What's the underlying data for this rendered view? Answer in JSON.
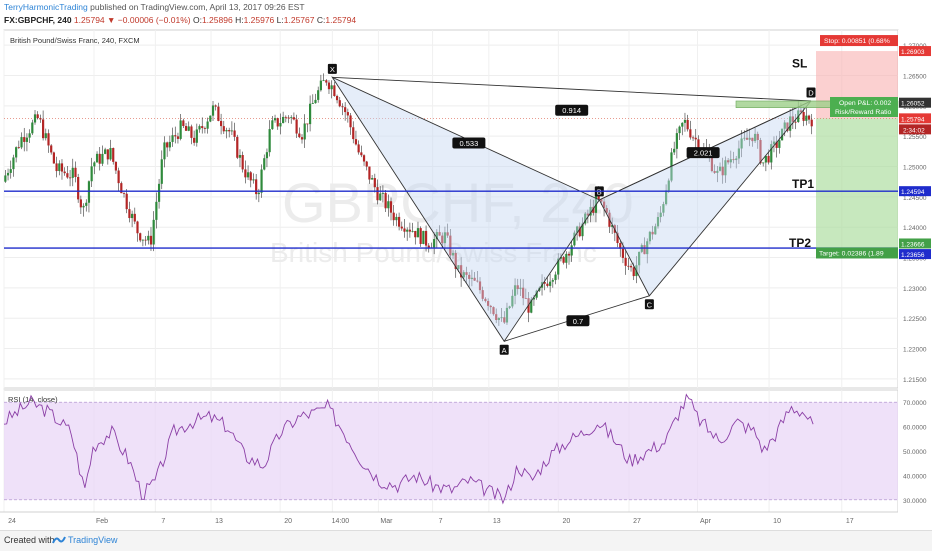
{
  "header": {
    "author": "TerryHarmonicTrading",
    "published": "published on TradingView.com, April 13, 2017 09:26 EST",
    "symbol": "FX:GBPCHF, 240",
    "last": "1.25794",
    "change": "▼ −0.00006 (−0.01%)",
    "open_label": "O:",
    "open": "1.25896",
    "high_label": "H:",
    "high": "1.25976",
    "low_label": "L:",
    "low": "1.25767",
    "close_label": "C:",
    "close": "1.25794"
  },
  "footer": {
    "created": "Created with",
    "brand": "TradingView"
  },
  "chart_data": {
    "type": "candlestick",
    "title": "British Pound/Swiss Franc, 240, FXCM",
    "watermark_symbol": "GBPCHF, 240",
    "watermark_name": "British Pound/Swiss Franc",
    "ylim": [
      1.2135,
      1.2725
    ],
    "y_ticks": [
      1.27,
      1.265,
      1.26,
      1.255,
      1.25,
      1.245,
      1.24,
      1.235,
      1.23,
      1.225,
      1.22,
      1.215
    ],
    "y_tick_labels": [
      "1.27000",
      "1.26500",
      "1.26000",
      "1.25500",
      "1.25000",
      "1.24500",
      "1.24000",
      "1.23500",
      "1.23000",
      "1.22500",
      "1.22000",
      "1.21500"
    ],
    "x_ticks": [
      {
        "label": "24",
        "pos": 0.0
      },
      {
        "label": "Feb",
        "pos": 0.1007
      },
      {
        "label": "7",
        "pos": 0.1693
      },
      {
        "label": "13",
        "pos": 0.2316
      },
      {
        "label": "20",
        "pos": 0.3089
      },
      {
        "label": "14:00",
        "pos": 0.3673
      },
      {
        "label": "Mar",
        "pos": 0.4188
      },
      {
        "label": "7",
        "pos": 0.4794
      },
      {
        "label": "13",
        "pos": 0.5423
      },
      {
        "label": "20",
        "pos": 0.6201
      },
      {
        "label": "27",
        "pos": 0.6991
      },
      {
        "label": "Apr",
        "pos": 0.7757
      },
      {
        "label": "10",
        "pos": 0.8558
      },
      {
        "label": "17",
        "pos": 0.9371
      },
      {
        "label": "24",
        "pos": 1.0126
      }
    ],
    "close_path": [
      [
        0.0,
        1.2475
      ],
      [
        0.02,
        1.2545
      ],
      [
        0.04,
        1.258
      ],
      [
        0.06,
        1.2495
      ],
      [
        0.08,
        1.2485
      ],
      [
        0.09,
        1.2425
      ],
      [
        0.1,
        1.2505
      ],
      [
        0.12,
        1.2525
      ],
      [
        0.135,
        1.2455
      ],
      [
        0.15,
        1.2395
      ],
      [
        0.165,
        1.2372
      ],
      [
        0.18,
        1.2525
      ],
      [
        0.2,
        1.2565
      ],
      [
        0.215,
        1.2545
      ],
      [
        0.235,
        1.2595
      ],
      [
        0.255,
        1.2555
      ],
      [
        0.27,
        1.2495
      ],
      [
        0.285,
        1.2455
      ],
      [
        0.3,
        1.2565
      ],
      [
        0.32,
        1.2585
      ],
      [
        0.335,
        1.2555
      ],
      [
        0.35,
        1.2615
      ],
      [
        0.362,
        1.2645
      ],
      [
        0.372,
        1.2625
      ],
      [
        0.385,
        1.2585
      ],
      [
        0.4,
        1.2515
      ],
      [
        0.42,
        1.2455
      ],
      [
        0.44,
        1.2415
      ],
      [
        0.46,
        1.2395
      ],
      [
        0.475,
        1.2375
      ],
      [
        0.495,
        1.2385
      ],
      [
        0.51,
        1.2325
      ],
      [
        0.53,
        1.2305
      ],
      [
        0.545,
        1.2275
      ],
      [
        0.56,
        1.2238
      ],
      [
        0.575,
        1.2305
      ],
      [
        0.59,
        1.2265
      ],
      [
        0.605,
        1.2305
      ],
      [
        0.625,
        1.2345
      ],
      [
        0.645,
        1.2395
      ],
      [
        0.665,
        1.2445
      ],
      [
        0.675,
        1.2425
      ],
      [
        0.69,
        1.2365
      ],
      [
        0.705,
        1.2325
      ],
      [
        0.72,
        1.2375
      ],
      [
        0.735,
        1.2415
      ],
      [
        0.75,
        1.2525
      ],
      [
        0.762,
        1.2575
      ],
      [
        0.775,
        1.2545
      ],
      [
        0.79,
        1.2515
      ],
      [
        0.8,
        1.2485
      ],
      [
        0.82,
        1.2525
      ],
      [
        0.84,
        1.2555
      ],
      [
        0.85,
        1.2505
      ],
      [
        0.865,
        1.2535
      ],
      [
        0.88,
        1.2575
      ],
      [
        0.895,
        1.2585
      ],
      [
        0.905,
        1.2579
      ]
    ],
    "pattern": {
      "points": [
        {
          "label": "X",
          "x": 0.3673,
          "y": 1.2647
        },
        {
          "label": "A",
          "x": 0.5595,
          "y": 1.2212
        },
        {
          "label": "B",
          "x": 0.6659,
          "y": 1.2445
        },
        {
          "label": "C",
          "x": 0.7219,
          "y": 1.2287
        },
        {
          "label": "D",
          "x": 0.9027,
          "y": 1.2608
        }
      ],
      "ratios": [
        {
          "label": "0.914",
          "x": 0.635,
          "y": 1.2592
        },
        {
          "label": "0.533",
          "x": 0.52,
          "y": 1.2538
        },
        {
          "label": "2.021",
          "x": 0.782,
          "y": 1.2522
        },
        {
          "label": "0.7",
          "x": 0.642,
          "y": 1.2245
        }
      ]
    },
    "levels": [
      {
        "name": "TP1",
        "price": 1.24594,
        "label": "1.24594"
      },
      {
        "name": "TP2",
        "price": 1.23656,
        "label": "1.23656"
      },
      {
        "name": "Target",
        "price": 1.23666,
        "label": "1.23666"
      },
      {
        "name": "Stop",
        "price": 1.26903,
        "label": "1.26903"
      },
      {
        "name": "Current",
        "price": 1.25794,
        "label": "1.25794"
      },
      {
        "name": "Entry",
        "price": 1.26052,
        "label": "1.26052"
      }
    ],
    "countdown": "2:34:02",
    "trade_labels": {
      "stop": "Stop: 0.00851 (0.68%",
      "open_pl": "Open P&L: 0.002",
      "rr": "Risk/Reward Ratio",
      "target": "Target: 0.02386 (1.89",
      "sl": "SL",
      "tp1": "TP1",
      "tp2": "TP2"
    },
    "rsi": {
      "title": "RSI (14, close)",
      "ylim": [
        25,
        75
      ],
      "overbought": 70,
      "oversold": 30,
      "y_ticks": [
        70,
        60,
        50,
        40,
        30
      ],
      "y_tick_labels": [
        "70.0000",
        "60.0000",
        "50.0000",
        "40.0000",
        "30.0000"
      ],
      "path": [
        [
          0.0,
          62
        ],
        [
          0.03,
          70
        ],
        [
          0.05,
          66
        ],
        [
          0.075,
          58
        ],
        [
          0.09,
          34
        ],
        [
          0.1,
          52
        ],
        [
          0.12,
          58
        ],
        [
          0.14,
          46
        ],
        [
          0.155,
          32
        ],
        [
          0.17,
          38
        ],
        [
          0.19,
          58
        ],
        [
          0.21,
          62
        ],
        [
          0.23,
          64
        ],
        [
          0.25,
          60
        ],
        [
          0.27,
          48
        ],
        [
          0.29,
          44
        ],
        [
          0.31,
          58
        ],
        [
          0.33,
          64
        ],
        [
          0.35,
          66
        ],
        [
          0.362,
          68
        ],
        [
          0.38,
          58
        ],
        [
          0.4,
          46
        ],
        [
          0.42,
          38
        ],
        [
          0.44,
          36
        ],
        [
          0.46,
          40
        ],
        [
          0.48,
          36
        ],
        [
          0.5,
          34
        ],
        [
          0.52,
          38
        ],
        [
          0.54,
          34
        ],
        [
          0.56,
          30
        ],
        [
          0.575,
          44
        ],
        [
          0.59,
          38
        ],
        [
          0.61,
          48
        ],
        [
          0.63,
          54
        ],
        [
          0.65,
          58
        ],
        [
          0.665,
          62
        ],
        [
          0.68,
          56
        ],
        [
          0.7,
          46
        ],
        [
          0.72,
          50
        ],
        [
          0.74,
          54
        ],
        [
          0.755,
          66
        ],
        [
          0.765,
          72
        ],
        [
          0.775,
          64
        ],
        [
          0.79,
          58
        ],
        [
          0.8,
          54
        ],
        [
          0.82,
          62
        ],
        [
          0.84,
          58
        ],
        [
          0.85,
          50
        ],
        [
          0.865,
          58
        ],
        [
          0.88,
          68
        ],
        [
          0.895,
          66
        ],
        [
          0.905,
          60
        ]
      ]
    }
  }
}
